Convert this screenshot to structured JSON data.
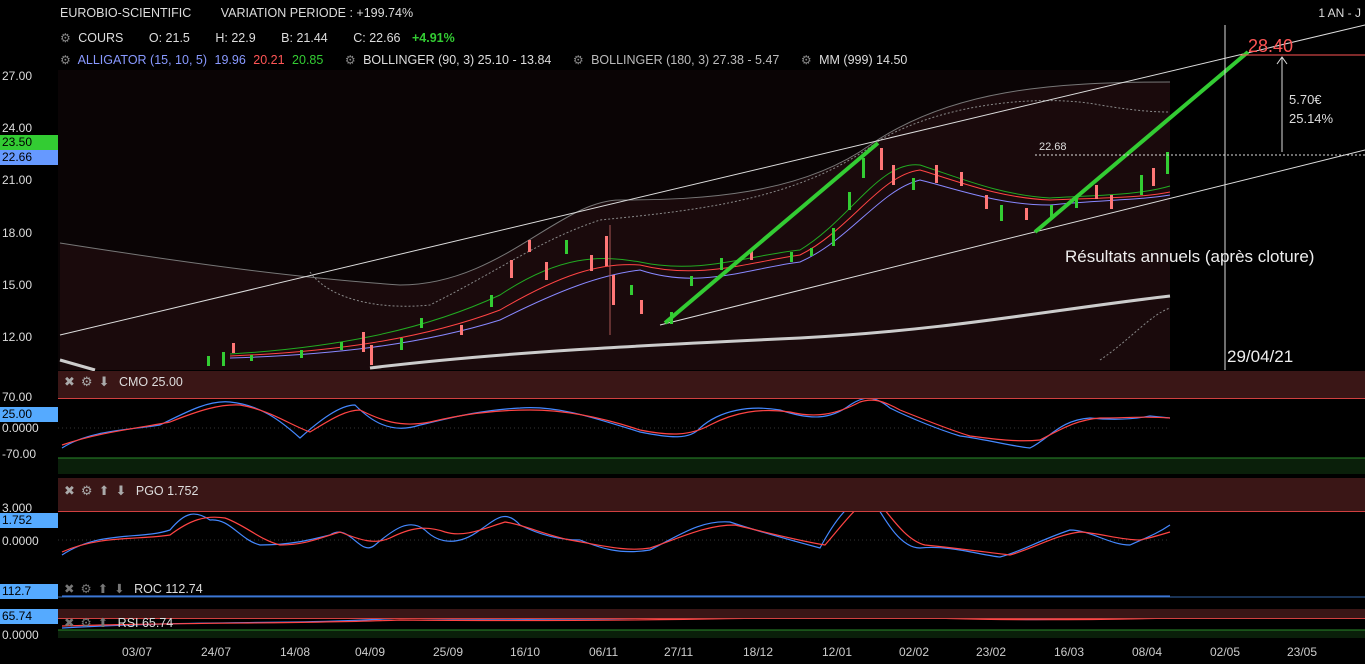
{
  "header": {
    "instrument": "EUROBIO-SCIENTIFIC",
    "variation": "VARIATION PERIODE : +199.74%",
    "period": "1 AN - J"
  },
  "quote": {
    "label": "COURS",
    "open": "O: 21.5",
    "high": "H: 22.9",
    "low": "B: 21.44",
    "close": "C: 22.66",
    "change": "+4.91%"
  },
  "indicators": {
    "alligator_label": "ALLIGATOR (15, 10, 5)",
    "alligator_v1": "19.96",
    "alligator_v2": "20.21",
    "alligator_v3": "20.85",
    "bollinger1": "BOLLINGER (90, 3)  25.10 - 13.84",
    "bollinger2": "BOLLINGER (180, 3)  27.38 - 5.47",
    "mm": "MM (999)  14.50"
  },
  "main_chart": {
    "yaxis": [
      "27.00",
      "24.00",
      "21.00",
      "18.00",
      "15.00",
      "12.00"
    ],
    "tag_high": "23.50",
    "tag_close": "22.66",
    "target_price": "28.40",
    "target_gain": "5.70€",
    "target_pct": "25.14%",
    "level_label": "22.68",
    "annotation": "Résultats annuels (après cloture)",
    "date_annotation": "29/04/21"
  },
  "panels": {
    "cmo": {
      "title": "CMO 25.00",
      "y_top": "70.00",
      "y_mid": "0.0000",
      "y_bot": "-70.00",
      "tag": "25.00"
    },
    "pgo": {
      "title": "PGO 1.752",
      "y_top": "3.000",
      "y_mid": "0.0000",
      "tag": "1.752"
    },
    "roc": {
      "title": "ROC 112.74",
      "tag": "112.7"
    },
    "rsi": {
      "title": "RSI 65.74",
      "tag": "65.74",
      "y_bot": "0.0000"
    }
  },
  "xaxis": [
    "03/07",
    "24/07",
    "14/08",
    "04/09",
    "25/09",
    "16/10",
    "06/11",
    "27/11",
    "18/12",
    "12/01",
    "02/02",
    "23/02",
    "16/03",
    "08/04",
    "02/05",
    "23/05"
  ],
  "colors": {
    "green": "#33cc33",
    "red": "#ff5555",
    "blue": "#5599ff",
    "panel": "#3a1616"
  }
}
